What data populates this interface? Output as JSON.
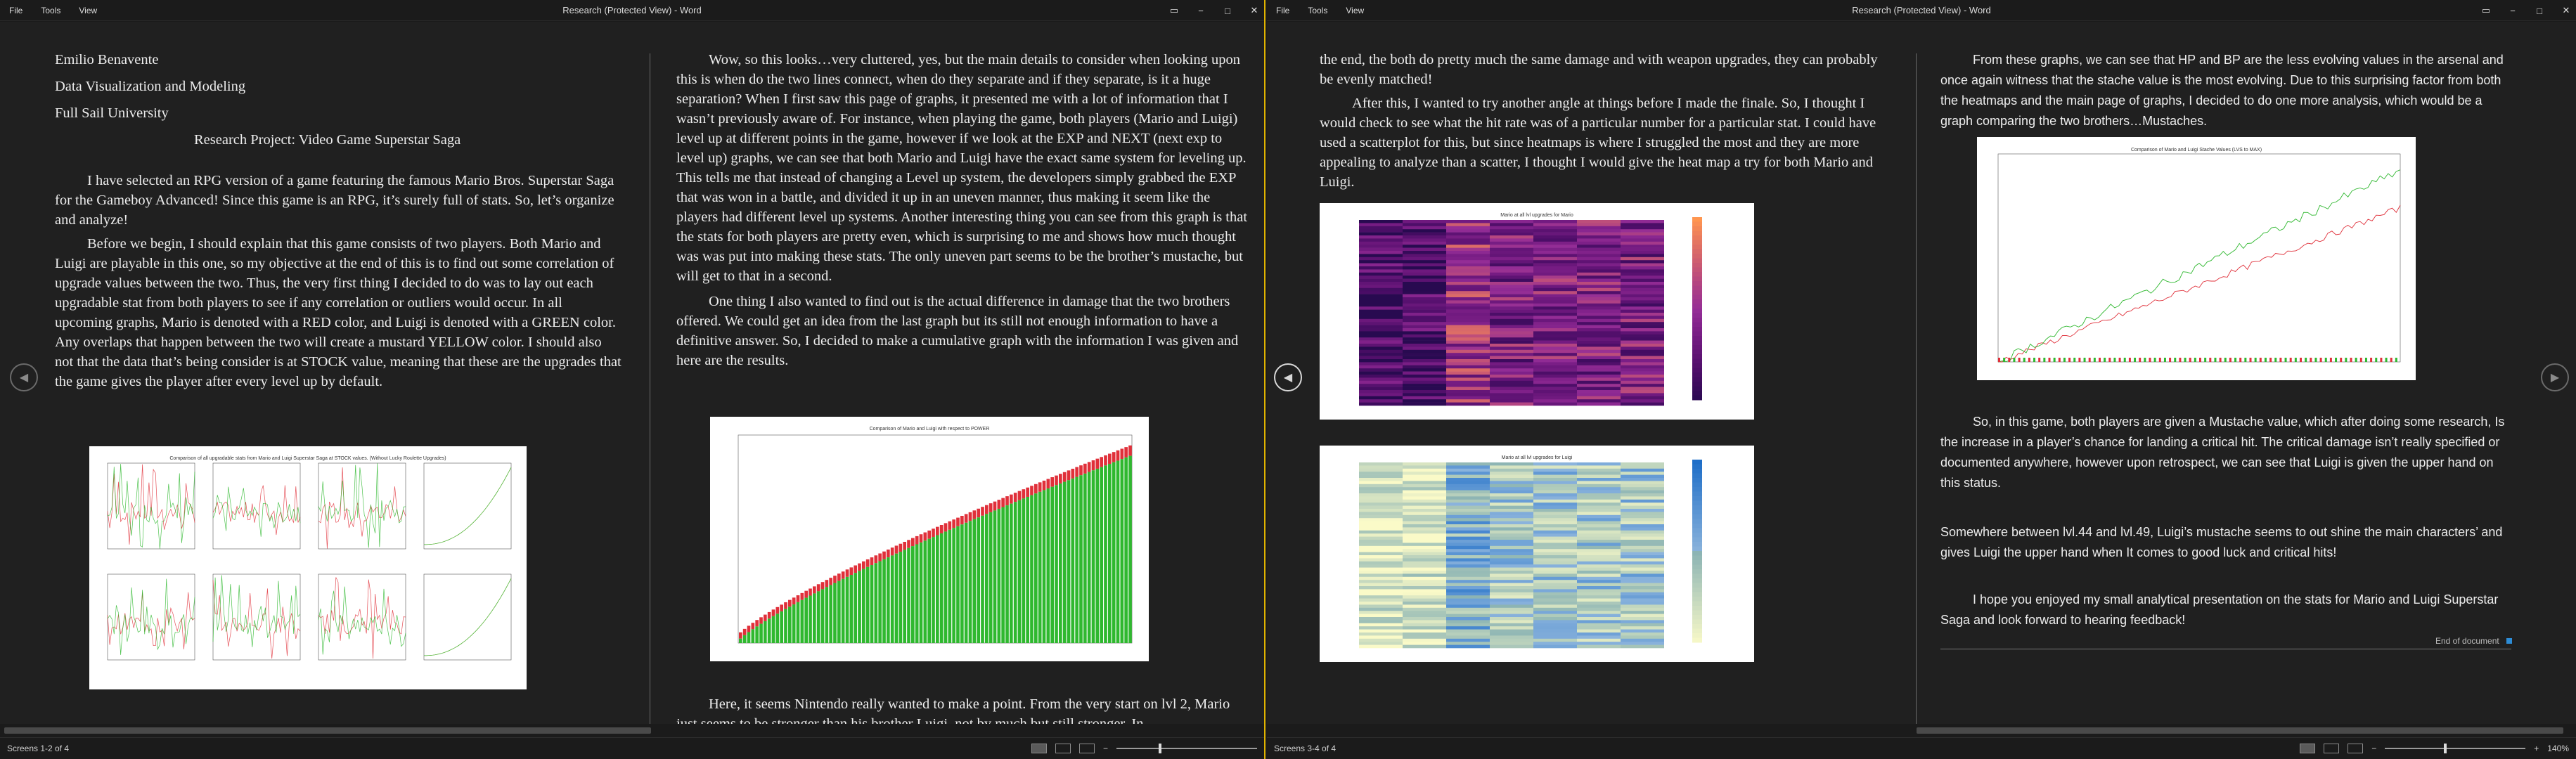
{
  "menu": [
    "File",
    "Tools",
    "View"
  ],
  "window_title": "Research (Protected View) - Word",
  "left": {
    "status": "Screens 1-2 of 4",
    "page1": {
      "author": "Emilio Benavente",
      "course": "Data Visualization and Modeling",
      "school": "Full Sail University",
      "title": "Research Project: Video Game Superstar Saga",
      "p1": "I have selected an RPG version of a game featuring the famous Mario Bros. Superstar Saga for the Gameboy Advanced! Since this game is an RPG, it’s surely full of stats. So, let’s organize and analyze!",
      "p2": "Before we begin, I should explain that this game consists of two players. Both Mario and Luigi are playable in this one, so my objective at the end of this is to find out some correlation of upgrade values between the two. Thus, the very first thing I decided to do was to lay out each upgradable stat from both players to see if any correlation or outliers would occur. In all upcoming graphs, Mario is denoted with a RED color, and Luigi is denoted with a GREEN color. Any overlaps that happen between the two will create a mustard YELLOW color. I should also not that the data that’s being consider is at STOCK value, meaning that these are the upgrades that the game gives the player after every level up by default.",
      "fig_title": "Comparison of all upgradable stats from Mario and Luigi Superstar Saga at STOCK values. (Without Lucky Roulette Upgrades)"
    },
    "page2": {
      "p1": "Wow, so this looks…very cluttered, yes, but the main details to consider when looking upon this is when do the two lines connect, when do they separate and if they separate, is it a huge separation? When I first saw this page of graphs, it presented me with a lot of information that I wasn’t previously aware of. For instance, when playing the game, both players (Mario and Luigi) level up at different points in the game, however if we look at the EXP and NEXT (next exp to level up) graphs, we can see that both Mario and Luigi have the exact same system for leveling up. This tells me that instead of changing a Level up system, the developers simply grabbed the EXP that was won in a battle, and divided it up in an uneven manner, thus making it seem like the players had different level up systems. Another interesting thing you can see from this graph is that the stats for both players are pretty even, which is surprising to me and shows how much thought was was put into making these stats. The only uneven part seems to be the brother’s mustache, but will get to that in a second.",
      "p2": "One thing I also wanted to find out is the actual difference in damage that the two brothers offered. We could get an idea from the last graph but its still not enough information to have a definitive answer. So, I decided to make a cumulative graph with the information I was given and here are the results.",
      "fig_title": "Comparison of Mario and Luigi with respect to POWER",
      "p3": "Here, it seems Nintendo really wanted to make a point. From the very start on lvl 2, Mario just seems to be stronger than his brother Luigi, not by much but still stronger. In"
    }
  },
  "right": {
    "status": "Screens 3-4 of 4",
    "zoom": "140%",
    "page3": {
      "p0": "the end, the both do pretty much the same damage and with weapon upgrades, they can probably be evenly matched!",
      "p1": "After this, I wanted to try another angle at things before I made the finale. So, I thought I would check to see what the hit rate was of a particular number for a particular stat. I could have used a scatterplot for this, but since heatmaps is where I struggled the most and they are more appealing to analyze than a scatter, I thought I would give the heat map a try for both Mario and Luigi.",
      "heat1_title": "Mario at all lvl upgrades for Mario",
      "heat2_title": "Mario at all lvl upgrades for Luigi"
    },
    "page4": {
      "p1": "From these graphs, we can see that HP and BP are the less evolving values in the arsenal and once again witness that the stache value is the most evolving. Due to this surprising factor from both the heatmaps and the main page of graphs, I decided to do one more analysis, which would be a graph comparing the two brothers…Mustaches.",
      "fig_title": "Comparison of Mario and Luigi Stache Values (LVS to MAX)",
      "p2": "So, in this game, both players are given a Mustache value, which after doing some research, Is the increase in a player’s chance for landing a critical hit. The critical damage isn’t really specified or documented anywhere, however upon retrospect, we can see that Luigi is given the upper hand on this status.",
      "p3": "Somewhere between lvl.44 and lvl.49, Luigi’s mustache seems to out shine the main characters’ and gives Luigi the upper hand when It comes to good luck and critical hits!",
      "p4": "I hope you enjoyed my small analytical presentation on the stats for Mario and Luigi Superstar Saga and look forward to hearing feedback!",
      "end": "End of document"
    }
  },
  "colors": {
    "mario": "#e0303a",
    "luigi": "#2fb82f",
    "accent": "#e0b300"
  }
}
